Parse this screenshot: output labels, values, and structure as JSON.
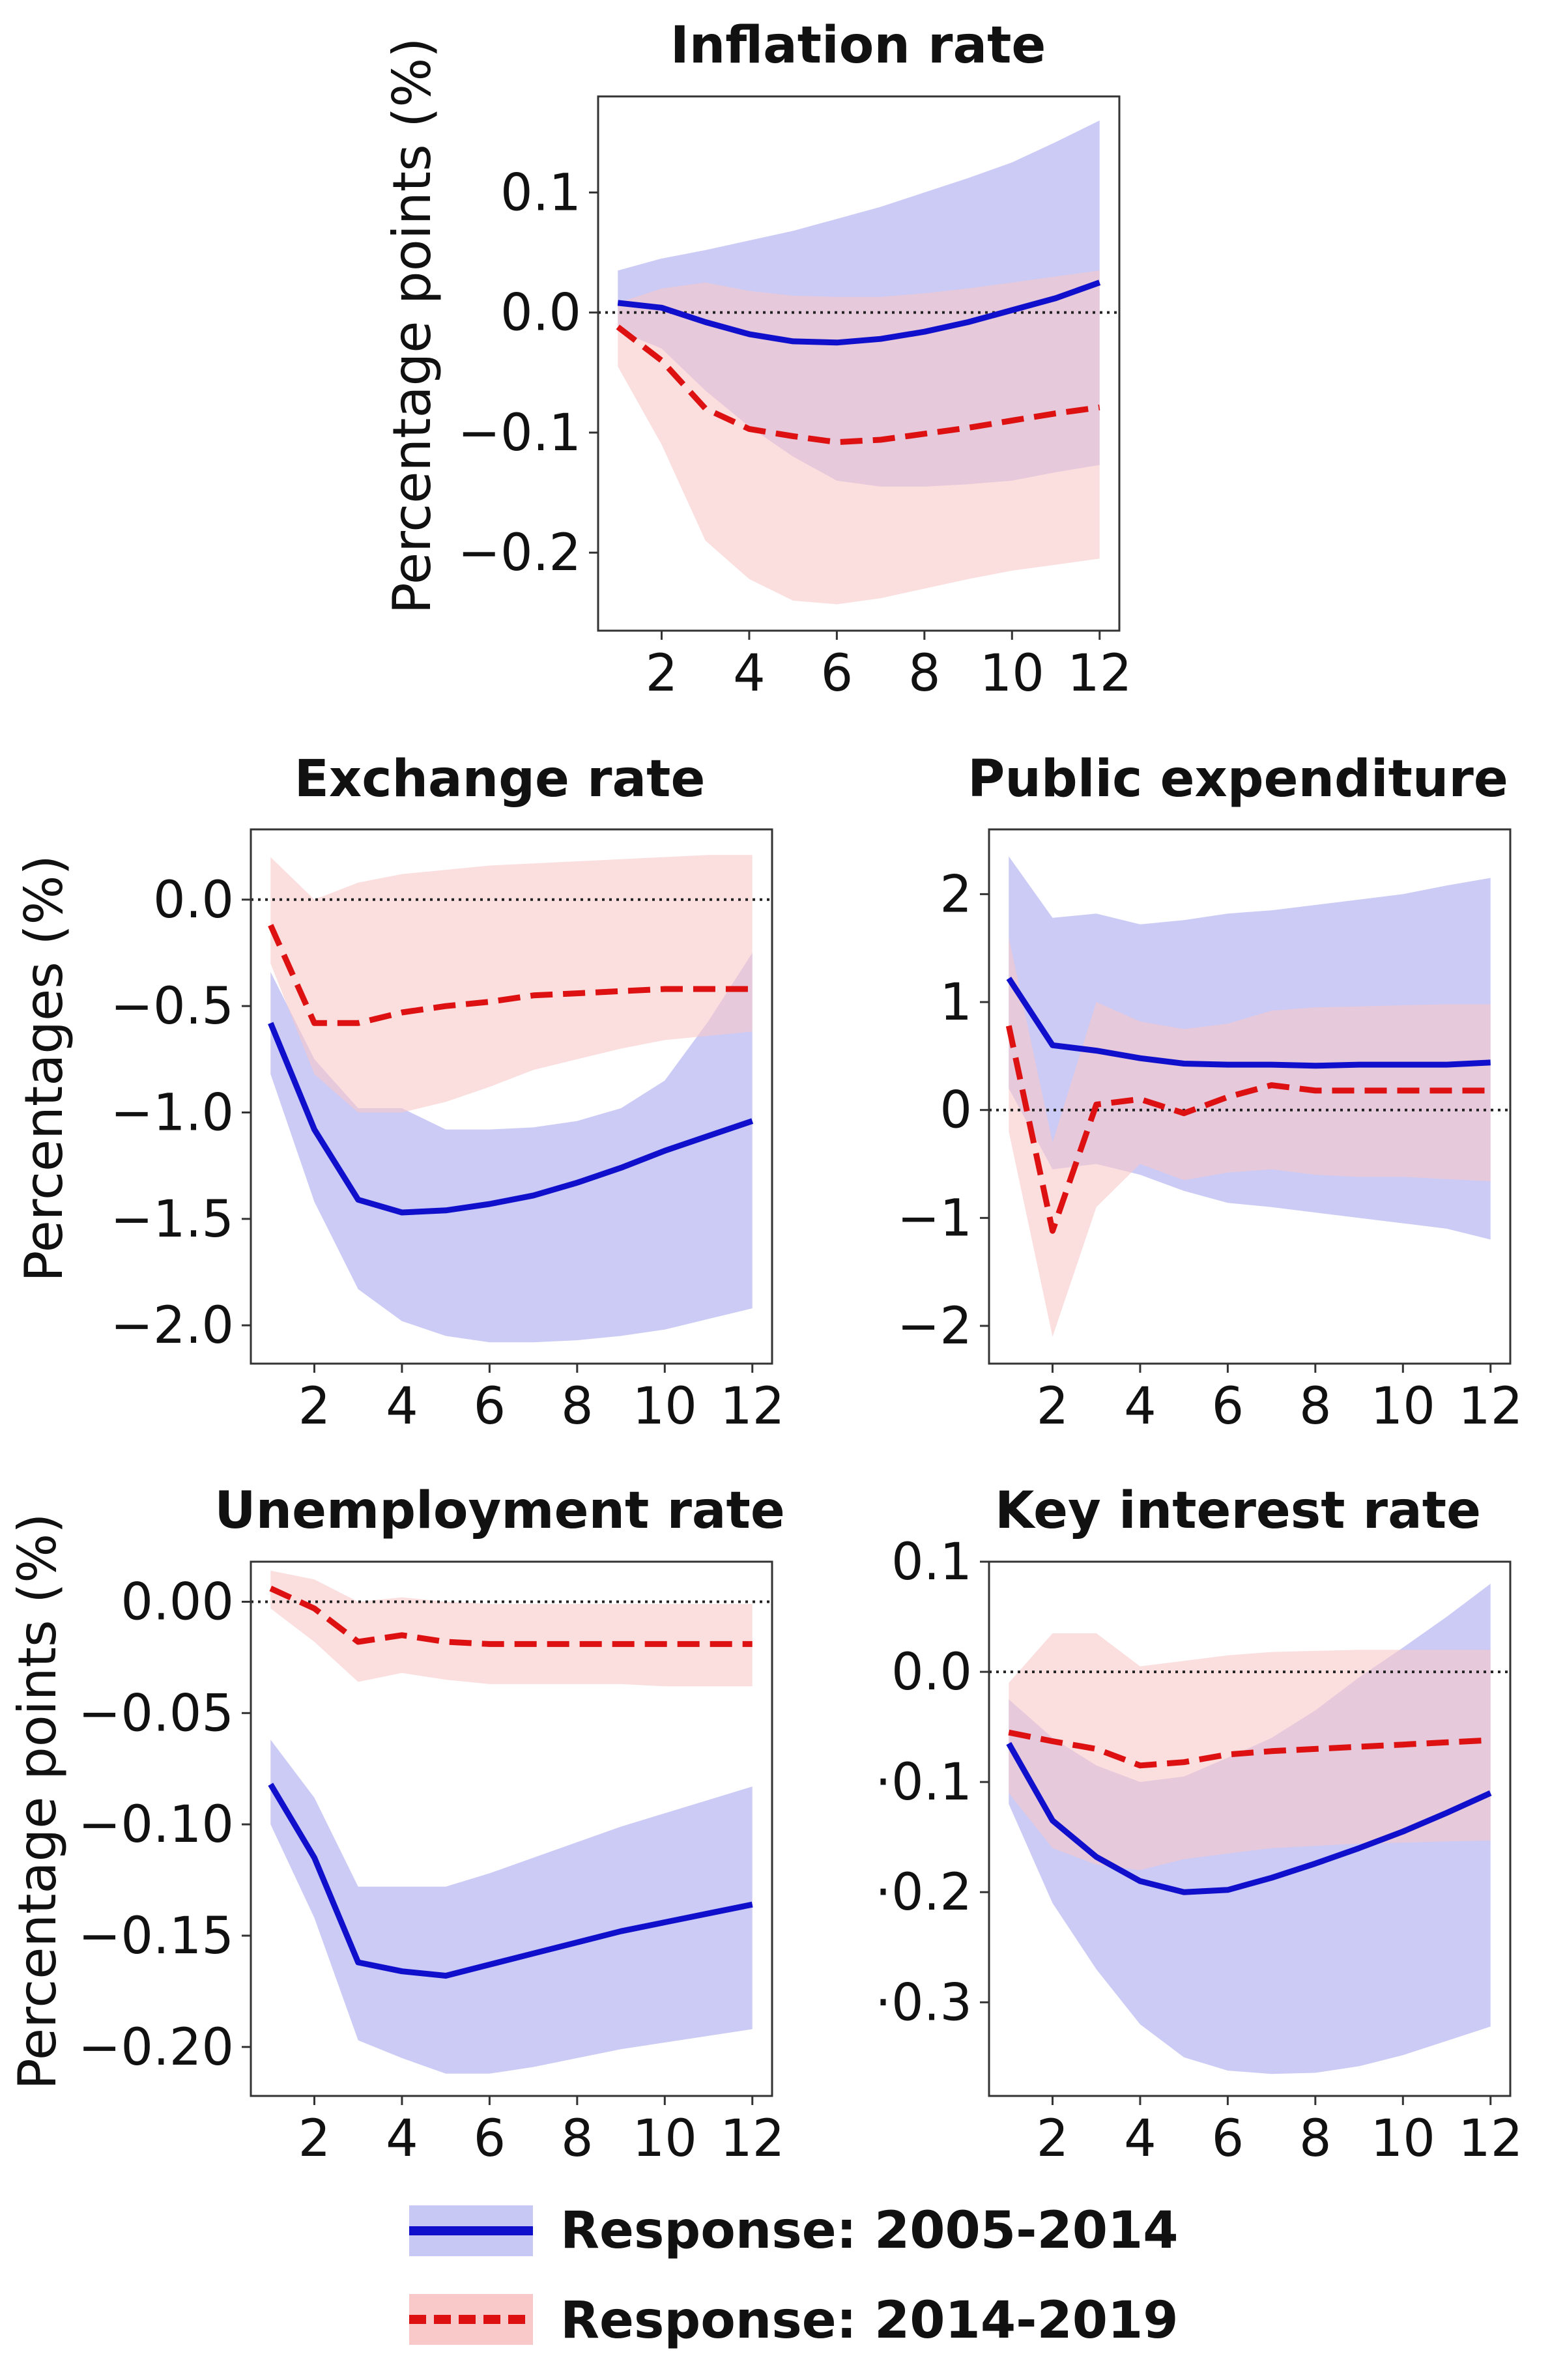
{
  "figure": {
    "legend": [
      {
        "label": "Response: 2005-2014",
        "color": "#1010cc",
        "band_color": "#c8c8f5",
        "style": "solid"
      },
      {
        "label": "Response: 2014-2019",
        "color": "#dd1111",
        "band_color": "#f9c8c8",
        "style": "dashed"
      }
    ],
    "colors": {
      "series_a": "#1010cc",
      "band_a": "#c8c8f5",
      "series_b": "#dd1111",
      "band_b": "#f9c8c8",
      "overlap": "#e3a9c4"
    }
  },
  "chart_data": [
    {
      "id": "inflation",
      "type": "line",
      "title": "Inflation rate",
      "ylabel": "Percentage points  (%)",
      "xlabel": "",
      "xlim": [
        0.55,
        12.45
      ],
      "ylim": [
        -0.265,
        0.18
      ],
      "xticks": [
        2,
        4,
        6,
        8,
        10,
        12
      ],
      "yticks": [
        0.1,
        0.0,
        -0.1,
        -0.2
      ],
      "ytick_labels": [
        "0.1",
        "0.0",
        "−0.1",
        "−0.2"
      ],
      "zero_line": true,
      "x": [
        1,
        2,
        3,
        4,
        5,
        6,
        7,
        8,
        9,
        10,
        11,
        12
      ],
      "series": [
        {
          "name": "Response: 2005-2014",
          "values": [
            0.008,
            0.004,
            -0.008,
            -0.018,
            -0.024,
            -0.025,
            -0.022,
            -0.016,
            -0.008,
            0.002,
            0.012,
            0.025
          ],
          "lower": [
            -0.015,
            -0.03,
            -0.065,
            -0.095,
            -0.12,
            -0.14,
            -0.145,
            -0.145,
            -0.143,
            -0.14,
            -0.133,
            -0.127
          ],
          "upper": [
            0.035,
            0.045,
            0.052,
            0.06,
            0.068,
            0.078,
            0.088,
            0.1,
            0.112,
            0.125,
            0.142,
            0.16
          ]
        },
        {
          "name": "Response: 2014-2019",
          "values": [
            -0.012,
            -0.04,
            -0.08,
            -0.097,
            -0.103,
            -0.108,
            -0.106,
            -0.101,
            -0.096,
            -0.09,
            -0.084,
            -0.079
          ],
          "lower": [
            -0.045,
            -0.11,
            -0.19,
            -0.222,
            -0.24,
            -0.243,
            -0.238,
            -0.23,
            -0.222,
            -0.215,
            -0.21,
            -0.205
          ],
          "upper": [
            0.008,
            0.02,
            0.025,
            0.018,
            0.014,
            0.013,
            0.013,
            0.016,
            0.02,
            0.025,
            0.03,
            0.035
          ]
        }
      ]
    },
    {
      "id": "exchange",
      "type": "line",
      "title": "Exchange rate",
      "ylabel": "Percentages (%)",
      "xlabel": "",
      "xlim": [
        0.55,
        12.45
      ],
      "ylim": [
        -2.18,
        0.33
      ],
      "xticks": [
        2,
        4,
        6,
        8,
        10,
        12
      ],
      "yticks": [
        0.0,
        -0.5,
        -1.0,
        -1.5,
        -2.0
      ],
      "ytick_labels": [
        "0.0",
        "−0.5",
        "−1.0",
        "−1.5",
        "−2.0"
      ],
      "zero_line": true,
      "x": [
        1,
        2,
        3,
        4,
        5,
        6,
        7,
        8,
        9,
        10,
        11,
        12
      ],
      "series": [
        {
          "name": "Response: 2005-2014",
          "values": [
            -0.58,
            -1.08,
            -1.41,
            -1.47,
            -1.46,
            -1.43,
            -1.39,
            -1.33,
            -1.26,
            -1.18,
            -1.11,
            -1.04
          ],
          "lower": [
            -0.82,
            -1.42,
            -1.83,
            -1.98,
            -2.05,
            -2.08,
            -2.08,
            -2.07,
            -2.05,
            -2.02,
            -1.97,
            -1.92
          ],
          "upper": [
            -0.34,
            -0.75,
            -0.98,
            -0.98,
            -1.08,
            -1.08,
            -1.07,
            -1.04,
            -0.98,
            -0.85,
            -0.57,
            -0.25
          ]
        },
        {
          "name": "Response: 2014-2019",
          "values": [
            -0.12,
            -0.58,
            -0.58,
            -0.53,
            -0.5,
            -0.48,
            -0.45,
            -0.44,
            -0.43,
            -0.42,
            -0.42,
            -0.42
          ],
          "lower": [
            -0.3,
            -0.82,
            -1.0,
            -1.0,
            -0.95,
            -0.88,
            -0.8,
            -0.75,
            -0.7,
            -0.66,
            -0.64,
            -0.62
          ],
          "upper": [
            0.2,
            0.0,
            0.08,
            0.12,
            0.14,
            0.16,
            0.17,
            0.18,
            0.19,
            0.2,
            0.21,
            0.21
          ]
        }
      ]
    },
    {
      "id": "public",
      "type": "line",
      "title": "Public expenditure",
      "ylabel": "",
      "xlabel": "",
      "xlim": [
        0.55,
        12.45
      ],
      "ylim": [
        -2.35,
        2.6
      ],
      "xticks": [
        2,
        4,
        6,
        8,
        10,
        12
      ],
      "yticks": [
        2,
        1,
        0,
        -1,
        -2
      ],
      "ytick_labels": [
        "2",
        "1",
        "0",
        "−1",
        "−2"
      ],
      "zero_line": true,
      "x": [
        1,
        2,
        3,
        4,
        5,
        6,
        7,
        8,
        9,
        10,
        11,
        12
      ],
      "series": [
        {
          "name": "Response: 2005-2014",
          "values": [
            1.22,
            0.6,
            0.55,
            0.48,
            0.43,
            0.42,
            0.42,
            0.41,
            0.42,
            0.42,
            0.42,
            0.44
          ],
          "lower": [
            0.2,
            -0.55,
            -0.5,
            -0.6,
            -0.75,
            -0.86,
            -0.9,
            -0.95,
            -1.0,
            -1.05,
            -1.1,
            -1.2
          ],
          "upper": [
            2.35,
            1.78,
            1.82,
            1.72,
            1.76,
            1.82,
            1.85,
            1.9,
            1.95,
            2.0,
            2.08,
            2.15
          ]
        },
        {
          "name": "Response: 2014-2019",
          "values": [
            0.78,
            -1.12,
            0.05,
            0.1,
            -0.03,
            0.12,
            0.23,
            0.18,
            0.18,
            0.18,
            0.18,
            0.18
          ],
          "lower": [
            -0.2,
            -2.1,
            -0.9,
            -0.5,
            -0.65,
            -0.58,
            -0.55,
            -0.6,
            -0.62,
            -0.62,
            -0.64,
            -0.66
          ],
          "upper": [
            1.6,
            -0.3,
            1.0,
            0.82,
            0.75,
            0.8,
            0.92,
            0.95,
            0.96,
            0.97,
            0.98,
            0.98
          ]
        }
      ]
    },
    {
      "id": "unemployment",
      "type": "line",
      "title": "Unemployment rate",
      "ylabel": "Percentage points  (%)",
      "xlabel": "",
      "xlim": [
        0.55,
        12.45
      ],
      "ylim": [
        -0.222,
        0.018
      ],
      "xticks": [
        2,
        4,
        6,
        8,
        10,
        12
      ],
      "yticks": [
        0.0,
        -0.05,
        -0.1,
        -0.15,
        -0.2
      ],
      "ytick_labels": [
        "0.00",
        "−0.05",
        "−0.10",
        "−0.15",
        "−0.20"
      ],
      "zero_line": true,
      "x": [
        1,
        2,
        3,
        4,
        5,
        6,
        7,
        8,
        9,
        10,
        11,
        12
      ],
      "series": [
        {
          "name": "Response: 2005-2014",
          "values": [
            -0.082,
            -0.115,
            -0.162,
            -0.166,
            -0.168,
            -0.163,
            -0.158,
            -0.153,
            -0.148,
            -0.144,
            -0.14,
            -0.136
          ],
          "lower": [
            -0.1,
            -0.142,
            -0.197,
            -0.205,
            -0.212,
            -0.212,
            -0.209,
            -0.205,
            -0.201,
            -0.198,
            -0.195,
            -0.192
          ],
          "upper": [
            -0.062,
            -0.088,
            -0.128,
            -0.128,
            -0.128,
            -0.122,
            -0.115,
            -0.108,
            -0.101,
            -0.095,
            -0.089,
            -0.083
          ]
        },
        {
          "name": "Response: 2014-2019",
          "values": [
            0.006,
            -0.003,
            -0.018,
            -0.015,
            -0.018,
            -0.019,
            -0.019,
            -0.019,
            -0.019,
            -0.019,
            -0.019,
            -0.019
          ],
          "lower": [
            -0.003,
            -0.018,
            -0.036,
            -0.032,
            -0.035,
            -0.037,
            -0.037,
            -0.037,
            -0.037,
            -0.038,
            -0.038,
            -0.038
          ],
          "upper": [
            0.014,
            0.01,
            0.0,
            0.002,
            0.0,
            -0.001,
            -0.001,
            -0.001,
            -0.001,
            -0.001,
            -0.001,
            -0.001
          ]
        }
      ]
    },
    {
      "id": "interest",
      "type": "line",
      "title": "Key interest rate",
      "ylabel": "",
      "xlabel": "",
      "xlim": [
        0.55,
        12.45
      ],
      "ylim": [
        -0.385,
        0.1
      ],
      "xticks": [
        2,
        4,
        6,
        8,
        10,
        12
      ],
      "yticks": [
        0.1,
        0.0,
        -0.1,
        -0.2,
        -0.3
      ],
      "ytick_labels": [
        "0.1",
        "0.0",
        "·0.1",
        "·0.2",
        "·0.3"
      ],
      "zero_line": true,
      "x": [
        1,
        2,
        3,
        4,
        5,
        6,
        7,
        8,
        9,
        10,
        11,
        12
      ],
      "series": [
        {
          "name": "Response: 2005-2014",
          "values": [
            -0.065,
            -0.135,
            -0.168,
            -0.19,
            -0.2,
            -0.198,
            -0.187,
            -0.174,
            -0.16,
            -0.145,
            -0.128,
            -0.11
          ],
          "lower": [
            -0.12,
            -0.21,
            -0.27,
            -0.32,
            -0.35,
            -0.362,
            -0.365,
            -0.364,
            -0.358,
            -0.348,
            -0.335,
            -0.322
          ],
          "upper": [
            -0.025,
            -0.06,
            -0.085,
            -0.1,
            -0.095,
            -0.078,
            -0.06,
            -0.035,
            -0.005,
            0.022,
            0.05,
            0.08
          ]
        },
        {
          "name": "Response: 2014-2019",
          "values": [
            -0.055,
            -0.063,
            -0.07,
            -0.085,
            -0.082,
            -0.075,
            -0.072,
            -0.07,
            -0.068,
            -0.066,
            -0.064,
            -0.062
          ],
          "lower": [
            -0.11,
            -0.16,
            -0.175,
            -0.18,
            -0.17,
            -0.165,
            -0.16,
            -0.158,
            -0.156,
            -0.155,
            -0.154,
            -0.153
          ],
          "upper": [
            -0.01,
            0.035,
            0.035,
            0.005,
            0.01,
            0.015,
            0.018,
            0.019,
            0.02,
            0.02,
            0.02,
            0.02
          ]
        }
      ]
    }
  ]
}
